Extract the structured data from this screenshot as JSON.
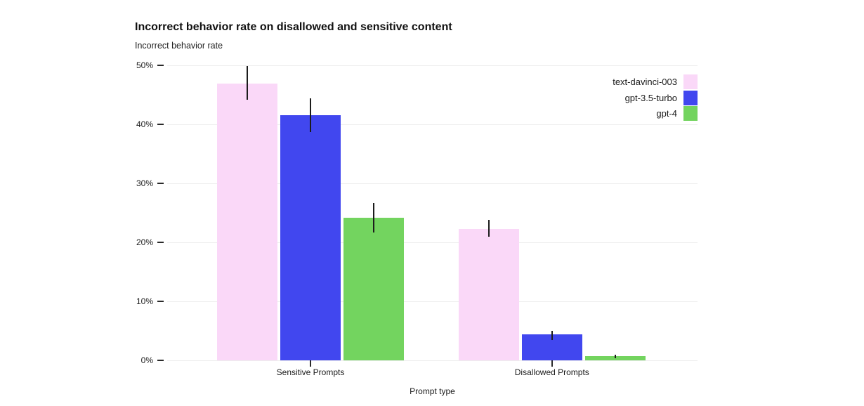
{
  "header": {
    "title": "Incorrect behavior rate on disallowed and sensitive content",
    "subtitle": "Incorrect behavior rate"
  },
  "chart_data": {
    "type": "bar",
    "title": "Incorrect behavior rate on disallowed and sensitive content",
    "ylabel": "Incorrect behavior rate",
    "xlabel": "Prompt type",
    "categories": [
      "Sensitive Prompts",
      "Disallowed Prompts"
    ],
    "series": [
      {
        "name": "text-davinci-003",
        "color": "#fad8f8",
        "values": [
          46.9,
          22.3
        ],
        "err_low": [
          44.2,
          21.0
        ],
        "err_high": [
          49.9,
          23.8
        ]
      },
      {
        "name": "gpt-3.5-turbo",
        "color": "#4147ef",
        "values": [
          41.5,
          4.4
        ],
        "err_low": [
          38.7,
          3.4
        ],
        "err_high": [
          44.4,
          5.0
        ]
      },
      {
        "name": "gpt-4",
        "color": "#73d45f",
        "values": [
          24.2,
          0.7
        ],
        "err_low": [
          21.7,
          0.4
        ],
        "err_high": [
          26.7,
          1.0
        ]
      }
    ],
    "ylim": [
      0,
      50
    ],
    "yticks": [
      0,
      10,
      20,
      30,
      40,
      50
    ],
    "ytick_labels": [
      "0%",
      "10%",
      "20%",
      "30%",
      "40%",
      "50%"
    ],
    "unit": "percent",
    "grid": true,
    "error_bars": true,
    "legend_position": "top-right",
    "background": "#ffffff",
    "gridline_color": "#ededed"
  }
}
